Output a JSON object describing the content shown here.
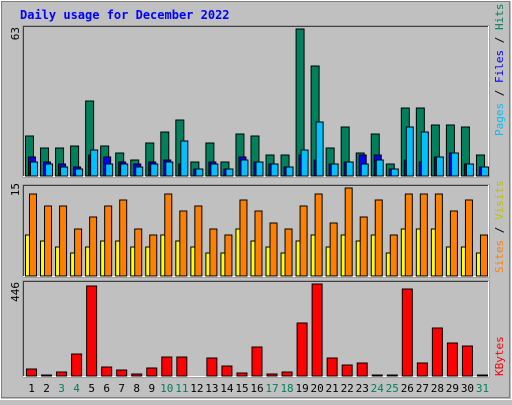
{
  "title": "Daily usage for December 2022",
  "colors": {
    "background": "#C0C0C0",
    "frame": "#808080",
    "panel": "#C0C0C0",
    "title_text": "#0000FF",
    "weekday_label": "#000000",
    "weekend_label": "#00805F",
    "hits": "#00805C",
    "files": "#00C0FF",
    "pages": "#0000FF",
    "visits": "#FF8000",
    "sites": "#FFFF00",
    "kbytes": "#FF0000",
    "bar_stroke": "#000000"
  },
  "chart_data": [
    {
      "type": "bar",
      "name": "hits-files-pages",
      "scale_label": "63",
      "ylim": [
        0,
        63
      ],
      "legend": {
        "sep": " / ",
        "pages": "Pages",
        "files": "Files",
        "hits": "Hits"
      },
      "categories": [
        "1",
        "2",
        "3",
        "4",
        "5",
        "6",
        "7",
        "8",
        "9",
        "10",
        "11",
        "12",
        "13",
        "14",
        "15",
        "16",
        "17",
        "18",
        "19",
        "20",
        "21",
        "22",
        "23",
        "24",
        "25",
        "26",
        "27",
        "28",
        "29",
        "30",
        "31"
      ],
      "weekend": [
        "3",
        "4",
        "10",
        "11",
        "17",
        "18",
        "24",
        "25",
        "31"
      ],
      "series": [
        {
          "name": "Hits",
          "values": [
            17,
            12,
            12,
            13,
            32,
            13,
            10,
            7,
            14,
            19,
            24,
            6,
            14,
            6,
            18,
            17,
            9,
            9,
            63,
            47,
            12,
            21,
            10,
            18,
            5,
            29,
            29,
            22,
            22,
            21,
            9
          ]
        },
        {
          "name": "Files",
          "values": [
            6,
            5,
            4,
            3,
            11,
            5,
            5,
            4,
            5,
            6,
            15,
            3,
            5,
            3,
            7,
            6,
            5,
            4,
            11,
            23,
            5,
            6,
            5,
            7,
            3,
            21,
            19,
            8,
            10,
            5,
            4
          ]
        },
        {
          "name": "Pages",
          "values": [
            8,
            6,
            5,
            4,
            9,
            8,
            6,
            5,
            6,
            7,
            5,
            3,
            6,
            3,
            8,
            6,
            5,
            4,
            9,
            7,
            5,
            6,
            9,
            9,
            3,
            7,
            6,
            8,
            10,
            5,
            4
          ]
        }
      ]
    },
    {
      "type": "bar",
      "name": "visits-sites",
      "scale_label": "15",
      "ylim": [
        0,
        15
      ],
      "legend": {
        "sep": " / ",
        "sites": "Sites",
        "visits": "Visits"
      },
      "categories": [
        "1",
        "2",
        "3",
        "4",
        "5",
        "6",
        "7",
        "8",
        "9",
        "10",
        "11",
        "12",
        "13",
        "14",
        "15",
        "16",
        "17",
        "18",
        "19",
        "20",
        "21",
        "22",
        "23",
        "24",
        "25",
        "26",
        "27",
        "28",
        "29",
        "30",
        "31"
      ],
      "series": [
        {
          "name": "Visits",
          "values": [
            14,
            12,
            12,
            8,
            10,
            12,
            13,
            8,
            7,
            14,
            11,
            12,
            8,
            7,
            13,
            11,
            9,
            8,
            12,
            14,
            9,
            15,
            10,
            13,
            7,
            14,
            14,
            14,
            11,
            13,
            7
          ]
        },
        {
          "name": "Sites",
          "values": [
            7,
            6,
            5,
            4,
            5,
            6,
            6,
            5,
            5,
            7,
            6,
            5,
            4,
            4,
            8,
            6,
            5,
            4,
            6,
            7,
            5,
            7,
            6,
            7,
            4,
            8,
            8,
            8,
            5,
            5,
            4
          ]
        }
      ]
    },
    {
      "type": "bar",
      "name": "kbytes",
      "scale_label": "446",
      "ylim": [
        0,
        446
      ],
      "legend": {
        "kbytes": "KBytes"
      },
      "categories": [
        "1",
        "2",
        "3",
        "4",
        "5",
        "6",
        "7",
        "8",
        "9",
        "10",
        "11",
        "12",
        "13",
        "14",
        "15",
        "16",
        "17",
        "18",
        "19",
        "20",
        "21",
        "22",
        "23",
        "24",
        "25",
        "26",
        "27",
        "28",
        "29",
        "30",
        "31"
      ],
      "series": [
        {
          "name": "KBytes",
          "values": [
            35,
            5,
            20,
            105,
            438,
            45,
            30,
            8,
            40,
            92,
            90,
            0,
            87,
            50,
            15,
            140,
            10,
            20,
            258,
            446,
            85,
            55,
            63,
            5,
            5,
            420,
            65,
            235,
            160,
            145,
            5
          ]
        }
      ]
    }
  ]
}
